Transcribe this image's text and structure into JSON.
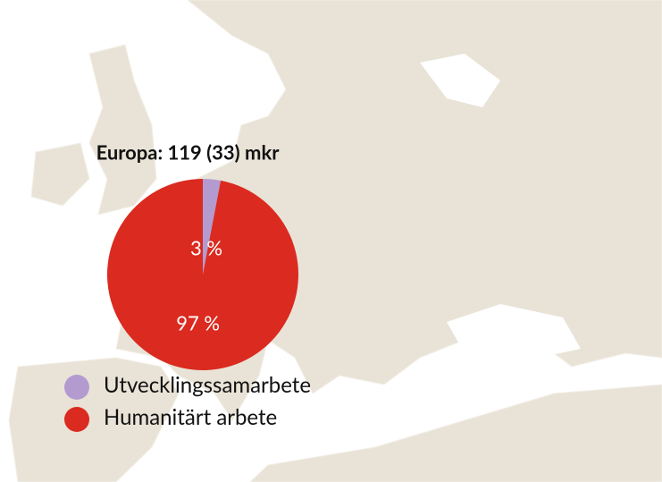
{
  "chart_data": {
    "type": "pie",
    "title": "Europa: 119 (33) mkr",
    "categories": [
      "Utvecklingssamarbete",
      "Humanitärt arbete"
    ],
    "values": [
      3,
      97
    ],
    "value_labels": [
      "3 %",
      "97 %"
    ],
    "colors": [
      "#b39bcf",
      "#db2a1f"
    ]
  }
}
